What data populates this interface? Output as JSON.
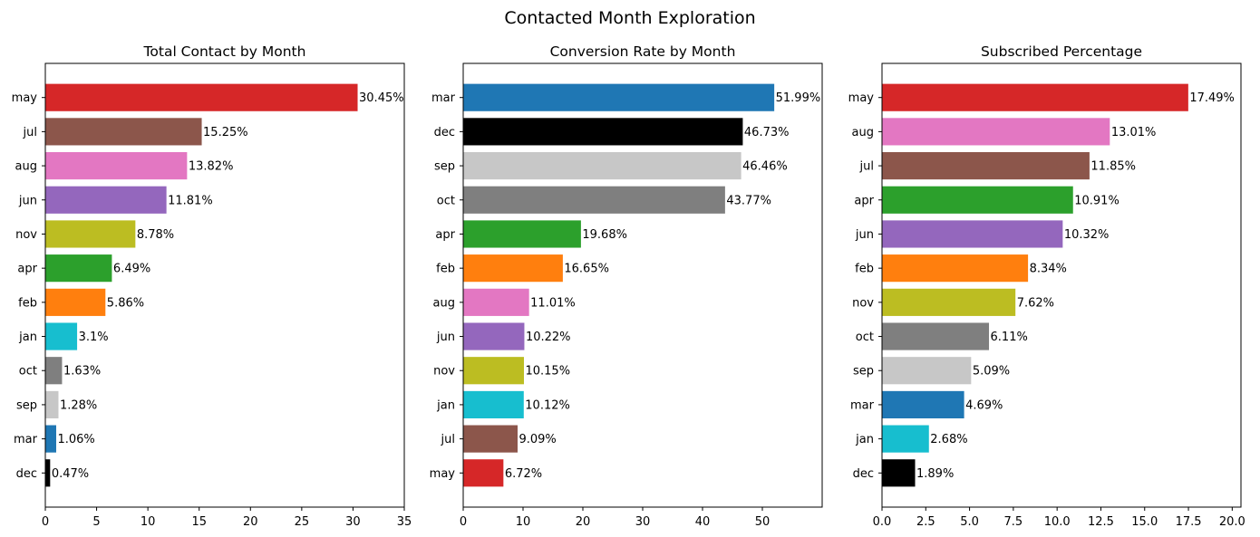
{
  "figure": {
    "title": "Contacted Month Exploration"
  },
  "colors": {
    "jan": "#17becf",
    "feb": "#ff7f0e",
    "mar": "#1f77b4",
    "apr": "#2ca02c",
    "may": "#d62728",
    "jun": "#9467bd",
    "jul": "#8c564b",
    "aug": "#e377c2",
    "sep": "#c7c7c7",
    "oct": "#7f7f7f",
    "nov": "#bcbd22",
    "dec": "#000000"
  },
  "chart_data": [
    {
      "type": "bar",
      "orientation": "horizontal",
      "title": "Total Contact by Month",
      "categories": [
        "may",
        "jul",
        "aug",
        "jun",
        "nov",
        "apr",
        "feb",
        "jan",
        "oct",
        "sep",
        "mar",
        "dec"
      ],
      "values": [
        30.45,
        15.25,
        13.82,
        11.81,
        8.78,
        6.49,
        5.86,
        3.1,
        1.63,
        1.28,
        1.06,
        0.47
      ],
      "labels": [
        "30.45%",
        "15.25%",
        "13.82%",
        "11.81%",
        "8.78%",
        "6.49%",
        "5.86%",
        "3.1%",
        "1.63%",
        "1.28%",
        "1.06%",
        "0.47%"
      ],
      "xlim": [
        0,
        35
      ],
      "xticks": [
        0,
        5,
        10,
        15,
        20,
        25,
        30,
        35
      ],
      "xticklabels": [
        "0",
        "5",
        "10",
        "15",
        "20",
        "25",
        "30",
        "35"
      ],
      "grid": false
    },
    {
      "type": "bar",
      "orientation": "horizontal",
      "title": "Conversion Rate by Month",
      "categories": [
        "mar",
        "dec",
        "sep",
        "oct",
        "apr",
        "feb",
        "aug",
        "jun",
        "nov",
        "jan",
        "jul",
        "may"
      ],
      "values": [
        51.99,
        46.73,
        46.46,
        43.77,
        19.68,
        16.65,
        11.01,
        10.22,
        10.15,
        10.12,
        9.09,
        6.72
      ],
      "labels": [
        "51.99%",
        "46.73%",
        "46.46%",
        "43.77%",
        "19.68%",
        "16.65%",
        "11.01%",
        "10.22%",
        "10.15%",
        "10.12%",
        "9.09%",
        "6.72%"
      ],
      "xlim": [
        0,
        60
      ],
      "xticks": [
        0,
        10,
        20,
        30,
        40,
        50
      ],
      "xticklabels": [
        "0",
        "10",
        "20",
        "30",
        "40",
        "50"
      ],
      "grid": false
    },
    {
      "type": "bar",
      "orientation": "horizontal",
      "title": "Subscribed Percentage",
      "categories": [
        "may",
        "aug",
        "jul",
        "apr",
        "jun",
        "feb",
        "nov",
        "oct",
        "sep",
        "mar",
        "jan",
        "dec"
      ],
      "values": [
        17.49,
        13.01,
        11.85,
        10.91,
        10.32,
        8.34,
        7.62,
        6.11,
        5.09,
        4.69,
        2.68,
        1.89
      ],
      "labels": [
        "17.49%",
        "13.01%",
        "11.85%",
        "10.91%",
        "10.32%",
        "8.34%",
        "7.62%",
        "6.11%",
        "5.09%",
        "4.69%",
        "2.68%",
        "1.89%"
      ],
      "xlim": [
        0,
        20.5
      ],
      "xticks": [
        0,
        2.5,
        5,
        7.5,
        10,
        12.5,
        15,
        17.5,
        20
      ],
      "xticklabels": [
        "0.0",
        "2.5",
        "5.0",
        "7.5",
        "10.0",
        "12.5",
        "15.0",
        "17.5",
        "20.0"
      ],
      "grid": false
    }
  ]
}
